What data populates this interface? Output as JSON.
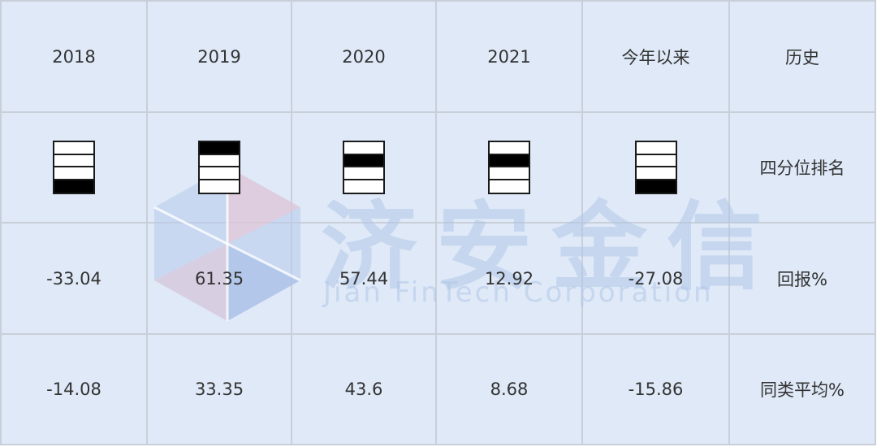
{
  "headers": [
    "2018",
    "2019",
    "2020",
    "2021",
    "今年以来",
    "历史"
  ],
  "rows": {
    "quartile": {
      "label": "四分位排名",
      "ranks": [
        4,
        1,
        2,
        2,
        4
      ]
    },
    "return": {
      "label": "回报%",
      "values": [
        "-33.04",
        "61.35",
        "57.44",
        "12.92",
        "-27.08"
      ]
    },
    "average": {
      "label": "同类平均%",
      "values": [
        "-14.08",
        "33.35",
        "43.6",
        "8.68",
        "-15.86"
      ]
    }
  },
  "watermark": {
    "title": "济安金信",
    "subtitle": "Jian FinTech Corporation"
  },
  "colors": {
    "cell_background": "#dfe9f7",
    "border": "#c9cfd8",
    "text": "#333333",
    "quartile_fill": "#000000",
    "watermark": "#afc6e8"
  }
}
